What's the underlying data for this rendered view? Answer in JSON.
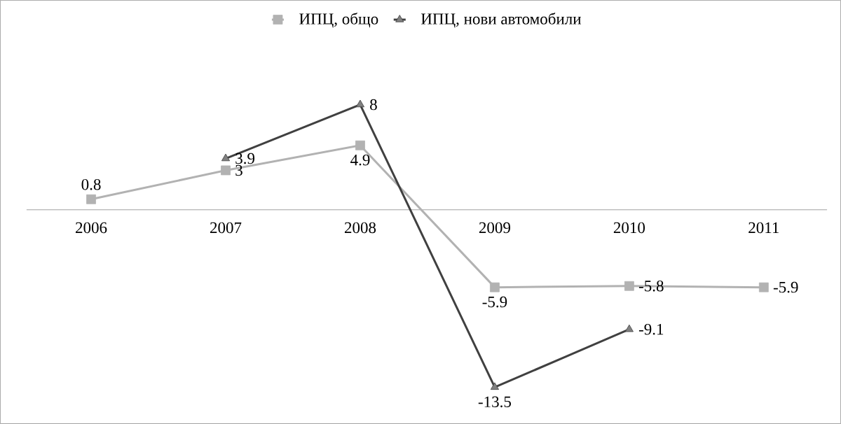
{
  "chart_data": {
    "type": "line",
    "categories": [
      "2006",
      "2007",
      "2008",
      "2009",
      "2010",
      "2011"
    ],
    "series": [
      {
        "name": "ИПЦ, общо",
        "color": "#b2b2b2",
        "marker": "square",
        "values": [
          0.8,
          3,
          4.9,
          -5.9,
          -5.8,
          -5.9
        ]
      },
      {
        "name": "ИПЦ, нови автомобили",
        "color": "#404040",
        "marker": "triangle",
        "values": [
          null,
          3.9,
          8,
          -13.5,
          -9.1,
          null
        ]
      }
    ],
    "ylim": [
      -16.3,
      15.7
    ],
    "data_labels": true,
    "legend": "top",
    "grid": false
  }
}
